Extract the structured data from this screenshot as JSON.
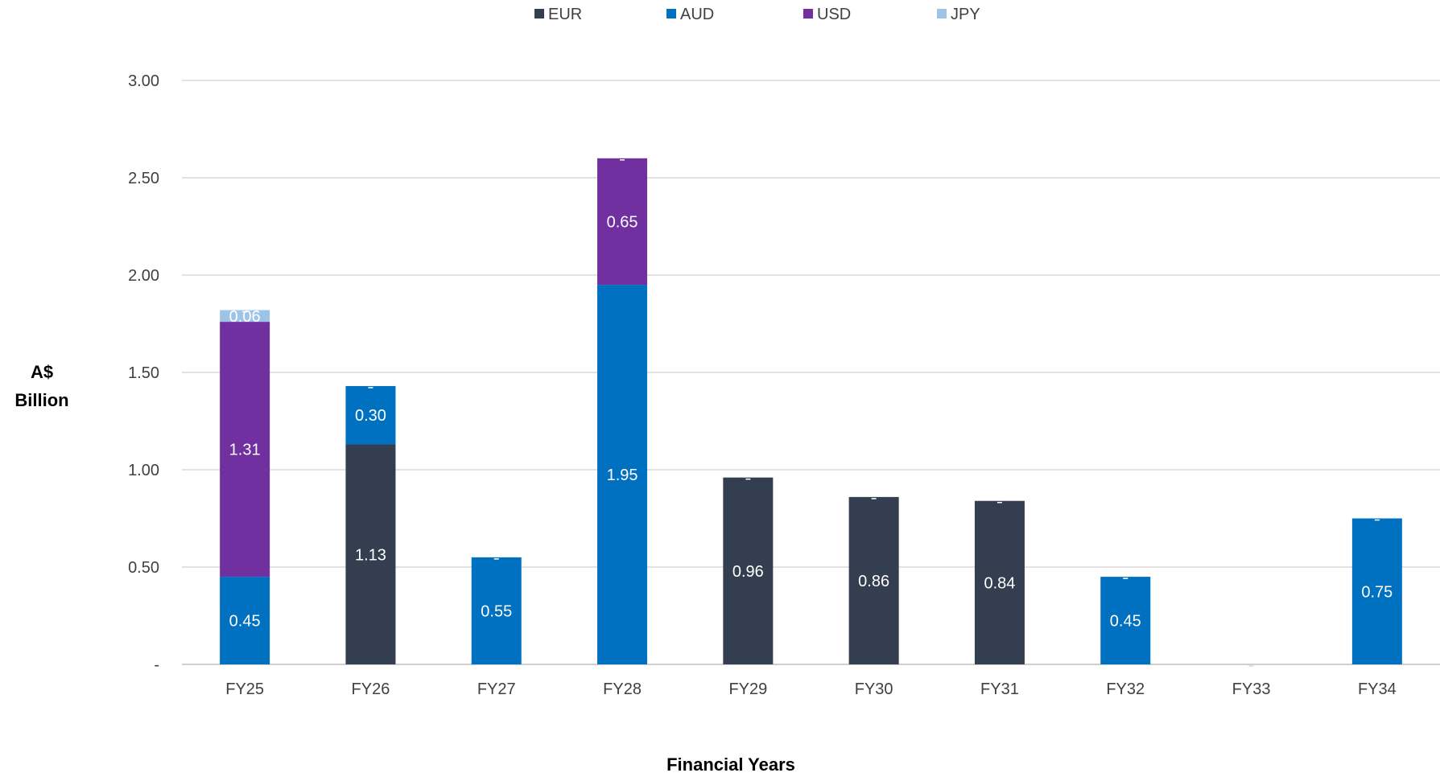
{
  "chart_data": {
    "type": "bar",
    "stacked": true,
    "categories": [
      "FY25",
      "FY26",
      "FY27",
      "FY28",
      "FY29",
      "FY30",
      "FY31",
      "FY32",
      "FY33",
      "FY34"
    ],
    "series": [
      {
        "name": "EUR",
        "color": "#333e50",
        "values": [
          0,
          1.13,
          0,
          0,
          0.96,
          0.86,
          0.84,
          0,
          0,
          0
        ]
      },
      {
        "name": "AUD",
        "color": "#0070c0",
        "values": [
          0.45,
          0.3,
          0.55,
          1.95,
          0,
          0,
          0,
          0.45,
          0,
          0.75
        ]
      },
      {
        "name": "USD",
        "color": "#7030a0",
        "values": [
          1.31,
          0,
          0,
          0.65,
          0,
          0,
          0,
          0,
          0,
          0
        ]
      },
      {
        "name": "JPY",
        "color": "#9dc3e6",
        "values": [
          0.06,
          0,
          0,
          0,
          0,
          0,
          0,
          0,
          0,
          0
        ]
      }
    ],
    "ylabel_lines": [
      "A$",
      "Billion"
    ],
    "xlabel": "Financial Years",
    "ylim": [
      0,
      3.0
    ],
    "yticks": [
      0,
      0.5,
      1.0,
      1.5,
      2.0,
      2.5,
      3.0
    ],
    "ytick_labels": [
      "-",
      "0.50",
      "1.00",
      "1.50",
      "2.00",
      "2.50",
      "3.00"
    ],
    "grid": true,
    "legend_position": "top-center"
  }
}
